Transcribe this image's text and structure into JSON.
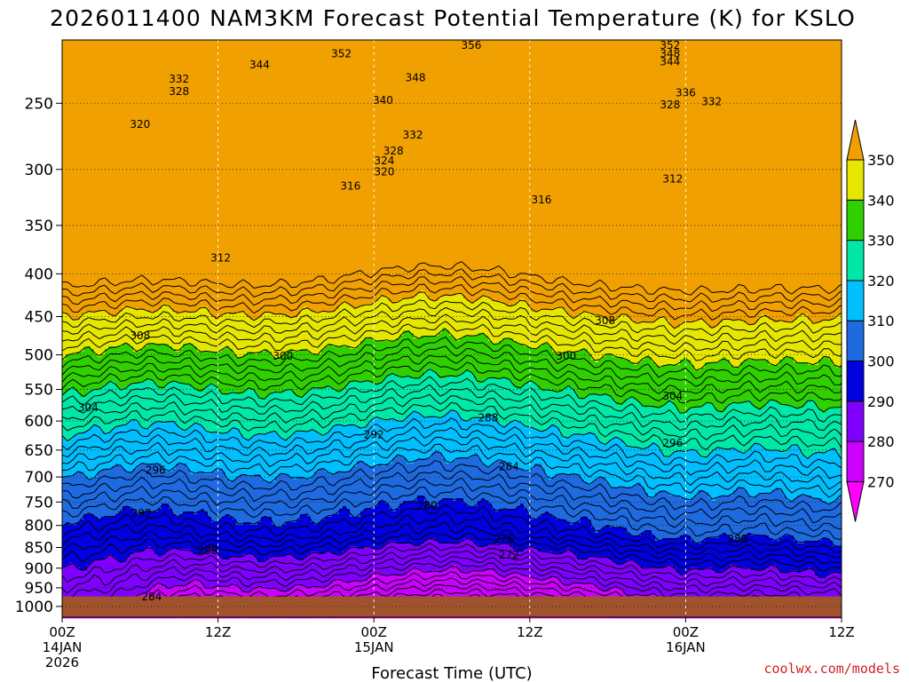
{
  "chart_data": {
    "type": "heatmap",
    "title": "2026011400 NAM3KM Forecast Potential Temperature (K) for KSLO",
    "xlabel": "Forecast Time (UTC)",
    "credit": "coolwx.com/models",
    "y_axis": {
      "quantity": "pressure (hPa)",
      "ticks": [
        250,
        300,
        350,
        400,
        450,
        500,
        550,
        600,
        650,
        700,
        750,
        800,
        850,
        900,
        950,
        1000
      ],
      "range": [
        210,
        1030
      ],
      "scale": "log"
    },
    "x_axis": {
      "range_hours": [
        0,
        60
      ],
      "ticks": [
        {
          "hour": 0,
          "label": "00Z",
          "date": "14JAN",
          "year": "2026"
        },
        {
          "hour": 12,
          "label": "12Z",
          "date": "",
          "year": ""
        },
        {
          "hour": 24,
          "label": "00Z",
          "date": "15JAN",
          "year": ""
        },
        {
          "hour": 36,
          "label": "12Z",
          "date": "",
          "year": ""
        },
        {
          "hour": 48,
          "label": "00Z",
          "date": "16JAN",
          "year": ""
        },
        {
          "hour": 60,
          "label": "12Z",
          "date": "",
          "year": ""
        }
      ]
    },
    "colorbar": {
      "labels": [
        270,
        280,
        290,
        300,
        310,
        320,
        330,
        340,
        350
      ],
      "colors": [
        "#ff00ff",
        "#cc00ff",
        "#7f00ff",
        "#0000e0",
        "#1e6ae0",
        "#00bfff",
        "#00e8a8",
        "#30d000",
        "#e6e600",
        "#f0a000"
      ]
    },
    "contour_interval_K": 2,
    "contour_labels": [
      {
        "hour": 31.5,
        "p": 213,
        "text": "356"
      },
      {
        "hour": 21.5,
        "p": 218,
        "text": "352"
      },
      {
        "hour": 46.8,
        "p": 213,
        "text": "352"
      },
      {
        "hour": 46.8,
        "p": 218,
        "text": "348"
      },
      {
        "hour": 46.8,
        "p": 223,
        "text": "344"
      },
      {
        "hour": 15.2,
        "p": 225,
        "text": "344"
      },
      {
        "hour": 27.2,
        "p": 233,
        "text": "348"
      },
      {
        "hour": 9.0,
        "p": 234,
        "text": "332"
      },
      {
        "hour": 9.0,
        "p": 242,
        "text": "328"
      },
      {
        "hour": 48.0,
        "p": 243,
        "text": "336"
      },
      {
        "hour": 50.0,
        "p": 249,
        "text": "332"
      },
      {
        "hour": 24.7,
        "p": 248,
        "text": "340"
      },
      {
        "hour": 46.8,
        "p": 251,
        "text": "328"
      },
      {
        "hour": 6.0,
        "p": 265,
        "text": "320"
      },
      {
        "hour": 27.0,
        "p": 273,
        "text": "332"
      },
      {
        "hour": 25.5,
        "p": 285,
        "text": "328"
      },
      {
        "hour": 24.8,
        "p": 293,
        "text": "324"
      },
      {
        "hour": 24.8,
        "p": 302,
        "text": "320"
      },
      {
        "hour": 47.0,
        "p": 308,
        "text": "312"
      },
      {
        "hour": 22.2,
        "p": 314,
        "text": "316"
      },
      {
        "hour": 36.9,
        "p": 326,
        "text": "316"
      },
      {
        "hour": 12.2,
        "p": 383,
        "text": "312"
      },
      {
        "hour": 41.8,
        "p": 455,
        "text": "308"
      },
      {
        "hour": 6.0,
        "p": 474,
        "text": "308"
      },
      {
        "hour": 17.0,
        "p": 502,
        "text": "300"
      },
      {
        "hour": 38.8,
        "p": 502,
        "text": "300"
      },
      {
        "hour": 47.0,
        "p": 560,
        "text": "304"
      },
      {
        "hour": 2.0,
        "p": 578,
        "text": "304"
      },
      {
        "hour": 32.8,
        "p": 595,
        "text": "288"
      },
      {
        "hour": 24.0,
        "p": 623,
        "text": "292"
      },
      {
        "hour": 47.0,
        "p": 638,
        "text": "296"
      },
      {
        "hour": 34.4,
        "p": 680,
        "text": "284"
      },
      {
        "hour": 7.2,
        "p": 687,
        "text": "296"
      },
      {
        "hour": 28.1,
        "p": 758,
        "text": "280"
      },
      {
        "hour": 6.1,
        "p": 774,
        "text": "292"
      },
      {
        "hour": 34.0,
        "p": 830,
        "text": "276"
      },
      {
        "hour": 52.0,
        "p": 830,
        "text": "288"
      },
      {
        "hour": 34.4,
        "p": 868,
        "text": "272"
      },
      {
        "hour": 11.2,
        "p": 857,
        "text": "288"
      },
      {
        "hour": 6.9,
        "p": 974,
        "text": "284"
      }
    ]
  }
}
